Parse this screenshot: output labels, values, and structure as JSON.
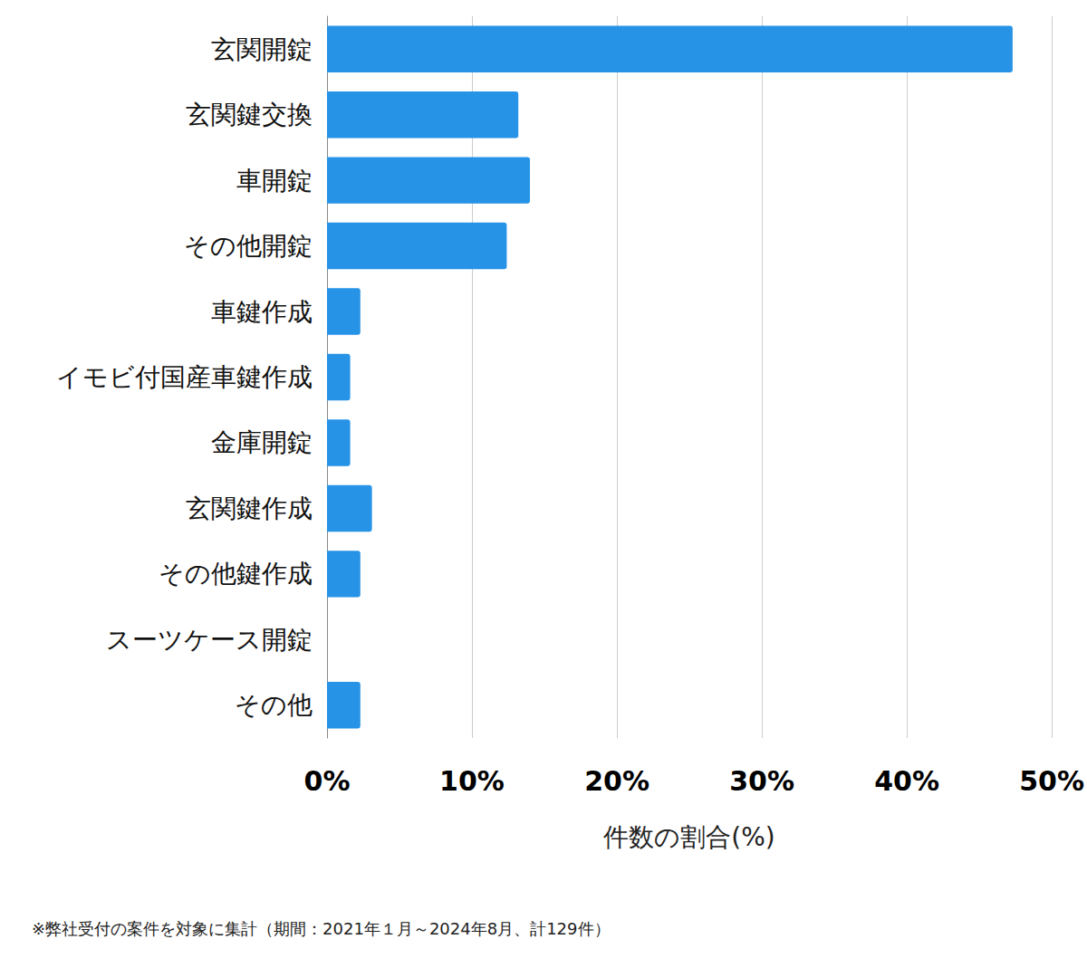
{
  "chart_data": {
    "type": "bar",
    "orientation": "horizontal",
    "categories": [
      "玄関開錠",
      "玄関鍵交換",
      "車開錠",
      "その他開錠",
      "車鍵作成",
      "イモビ付国産車鍵作成",
      "金庫開錠",
      "玄関鍵作成",
      "その他鍵作成",
      "スーツケース開錠",
      "その他"
    ],
    "values": [
      47.3,
      13.2,
      14.0,
      12.4,
      2.3,
      1.6,
      1.6,
      3.1,
      2.3,
      0,
      2.3
    ],
    "color": "#2693e6",
    "x_label": "件数の割合(%)",
    "xlim": [
      0,
      50
    ],
    "xticks": [
      {
        "value": 0,
        "label": "0%"
      },
      {
        "value": 10,
        "label": "10%"
      },
      {
        "value": 20,
        "label": "20%"
      },
      {
        "value": 30,
        "label": "30%"
      },
      {
        "value": 40,
        "label": "40%"
      },
      {
        "value": 50,
        "label": "50%"
      }
    ],
    "grid": true,
    "annotations": [
      "※弊社受付の案件を対象に集計（期間：2021年１月～2024年8月、計129件）"
    ]
  }
}
